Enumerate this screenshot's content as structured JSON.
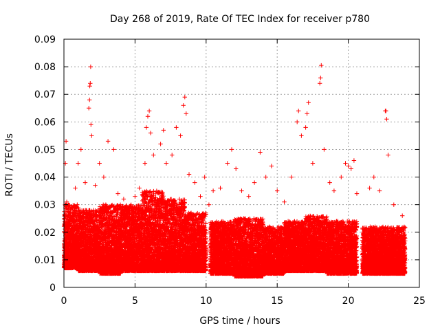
{
  "chart_data": {
    "type": "scatter",
    "title": "Day 268 of 2019, Rate Of TEC Index for receiver p780",
    "xlabel": "GPS time / hours",
    "ylabel": "ROTI / TECUs",
    "xlim": [
      0,
      25
    ],
    "ylim": [
      0,
      0.09
    ],
    "xticks": [
      0,
      5,
      10,
      15,
      20,
      25
    ],
    "xtick_labels": [
      "0",
      "5",
      "10",
      "15",
      "20",
      "25"
    ],
    "yticks": [
      0,
      0.01,
      0.02,
      0.03,
      0.04,
      0.05,
      0.06,
      0.07,
      0.08,
      0.09
    ],
    "ytick_labels": [
      "0",
      "0.01",
      "0.02",
      "0.03",
      "0.04",
      "0.05",
      "0.06",
      "0.07",
      "0.08",
      "0.09"
    ],
    "grid": true,
    "marker": "+",
    "marker_color": "#ff0000",
    "series": [
      {
        "name": "ROTI",
        "points": [
          [
            0.05,
            0.012
          ],
          [
            0.1,
            0.045
          ],
          [
            0.15,
            0.053
          ],
          [
            0.2,
            0.031
          ],
          [
            0.3,
            0.021
          ],
          [
            0.5,
            0.018
          ],
          [
            0.8,
            0.036
          ],
          [
            1.0,
            0.045
          ],
          [
            1.2,
            0.05
          ],
          [
            1.5,
            0.038
          ],
          [
            1.75,
            0.065
          ],
          [
            1.8,
            0.068
          ],
          [
            1.82,
            0.073
          ],
          [
            1.85,
            0.074
          ],
          [
            1.88,
            0.08
          ],
          [
            1.9,
            0.059
          ],
          [
            1.95,
            0.055
          ],
          [
            2.2,
            0.037
          ],
          [
            2.5,
            0.045
          ],
          [
            2.8,
            0.04
          ],
          [
            3.1,
            0.053
          ],
          [
            3.5,
            0.05
          ],
          [
            3.8,
            0.034
          ],
          [
            4.2,
            0.032
          ],
          [
            4.6,
            0.028
          ],
          [
            5.0,
            0.033
          ],
          [
            5.3,
            0.036
          ],
          [
            5.7,
            0.045
          ],
          [
            5.8,
            0.058
          ],
          [
            5.9,
            0.062
          ],
          [
            6.0,
            0.064
          ],
          [
            6.1,
            0.056
          ],
          [
            6.3,
            0.048
          ],
          [
            6.8,
            0.052
          ],
          [
            7.0,
            0.057
          ],
          [
            7.2,
            0.045
          ],
          [
            7.6,
            0.048
          ],
          [
            7.9,
            0.058
          ],
          [
            8.2,
            0.055
          ],
          [
            8.4,
            0.066
          ],
          [
            8.5,
            0.069
          ],
          [
            8.6,
            0.063
          ],
          [
            8.8,
            0.041
          ],
          [
            9.2,
            0.038
          ],
          [
            9.6,
            0.033
          ],
          [
            9.9,
            0.04
          ],
          [
            10.2,
            0.03
          ],
          [
            10.5,
            0.035
          ],
          [
            11.0,
            0.036
          ],
          [
            11.5,
            0.045
          ],
          [
            11.8,
            0.05
          ],
          [
            12.1,
            0.043
          ],
          [
            12.5,
            0.035
          ],
          [
            13.0,
            0.033
          ],
          [
            13.4,
            0.038
          ],
          [
            13.8,
            0.049
          ],
          [
            14.2,
            0.04
          ],
          [
            14.6,
            0.044
          ],
          [
            15.0,
            0.035
          ],
          [
            15.5,
            0.031
          ],
          [
            16.0,
            0.04
          ],
          [
            16.4,
            0.06
          ],
          [
            16.5,
            0.064
          ],
          [
            16.7,
            0.055
          ],
          [
            17.0,
            0.058
          ],
          [
            17.1,
            0.063
          ],
          [
            17.2,
            0.067
          ],
          [
            17.5,
            0.045
          ],
          [
            18.0,
            0.074
          ],
          [
            18.05,
            0.076
          ],
          [
            18.1,
            0.0805
          ],
          [
            18.3,
            0.05
          ],
          [
            18.7,
            0.038
          ],
          [
            19.0,
            0.035
          ],
          [
            19.5,
            0.04
          ],
          [
            19.8,
            0.045
          ],
          [
            20.0,
            0.044
          ],
          [
            20.2,
            0.043
          ],
          [
            20.4,
            0.046
          ],
          [
            20.6,
            0.034
          ],
          [
            21.5,
            0.036
          ],
          [
            21.8,
            0.04
          ],
          [
            22.2,
            0.035
          ],
          [
            22.6,
            0.064
          ],
          [
            22.65,
            0.064
          ],
          [
            22.7,
            0.061
          ],
          [
            22.8,
            0.048
          ],
          [
            23.2,
            0.03
          ],
          [
            23.8,
            0.026
          ]
        ],
        "bands": [
          [
            0.0,
            1.0,
            0.007,
            0.03
          ],
          [
            1.0,
            2.5,
            0.006,
            0.028
          ],
          [
            2.5,
            4.0,
            0.005,
            0.03
          ],
          [
            4.0,
            5.5,
            0.006,
            0.03
          ],
          [
            5.5,
            7.0,
            0.006,
            0.035
          ],
          [
            7.0,
            8.5,
            0.006,
            0.032
          ],
          [
            8.5,
            10.0,
            0.006,
            0.027
          ],
          [
            10.3,
            12.0,
            0.005,
            0.024
          ],
          [
            12.0,
            14.0,
            0.004,
            0.025
          ],
          [
            14.0,
            15.5,
            0.005,
            0.022
          ],
          [
            15.5,
            17.0,
            0.006,
            0.024
          ],
          [
            17.0,
            18.5,
            0.006,
            0.026
          ],
          [
            18.5,
            20.6,
            0.005,
            0.024
          ],
          [
            21.0,
            24.0,
            0.005,
            0.022
          ]
        ]
      }
    ]
  }
}
